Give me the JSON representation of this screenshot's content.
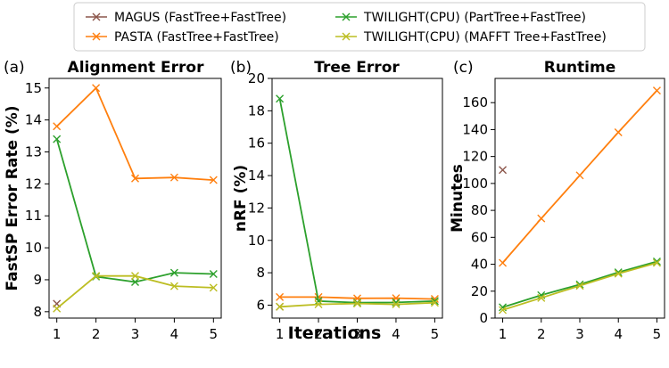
{
  "legend": {
    "entries": [
      {
        "label": "MAGUS (FastTree+FastTree)",
        "color": "#8c564b"
      },
      {
        "label": "PASTA (FastTree+FastTree)",
        "color": "#ff7f0e"
      },
      {
        "label": "TWILIGHT(CPU) (PartTree+FastTree)",
        "color": "#2ca02c"
      },
      {
        "label": "TWILIGHT(CPU) (MAFFT Tree+FastTree)",
        "color": "#bcbd22"
      }
    ]
  },
  "shared_xlabel": "Iterations",
  "chart_data": [
    {
      "type": "line",
      "panel_label": "(a)",
      "title": "Alignment Error",
      "xlabel": "",
      "ylabel": "FastSP Error Rate (%)",
      "x": [
        1,
        2,
        3,
        4,
        5
      ],
      "xticks": [
        "1",
        "2",
        "3",
        "4",
        "5"
      ],
      "ylim": [
        7.8,
        15.3
      ],
      "yticks": [
        8,
        9,
        10,
        11,
        12,
        13,
        14,
        15
      ],
      "series": [
        {
          "name": "MAGUS (FastTree+FastTree)",
          "color": "#8c564b",
          "values": [
            8.25,
            null,
            null,
            null,
            null
          ]
        },
        {
          "name": "PASTA (FastTree+FastTree)",
          "color": "#ff7f0e",
          "values": [
            13.8,
            15.0,
            12.17,
            12.2,
            12.12
          ]
        },
        {
          "name": "TWILIGHT(CPU) (PartTree+FastTree)",
          "color": "#2ca02c",
          "values": [
            13.4,
            9.1,
            8.93,
            9.22,
            9.18
          ]
        },
        {
          "name": "TWILIGHT(CPU) (MAFFT Tree+FastTree)",
          "color": "#bcbd22",
          "values": [
            8.1,
            9.12,
            9.12,
            8.8,
            8.75
          ]
        }
      ]
    },
    {
      "type": "line",
      "panel_label": "(b)",
      "title": "Tree Error",
      "xlabel": "",
      "ylabel": "nRF (%)",
      "x": [
        1,
        2,
        3,
        4,
        5
      ],
      "xticks": [
        "1",
        "2",
        "3",
        "4",
        "5"
      ],
      "ylim": [
        5.2,
        20.0
      ],
      "yticks": [
        6,
        8,
        10,
        12,
        14,
        16,
        18,
        20
      ],
      "series": [
        {
          "name": "MAGUS (FastTree+FastTree)",
          "color": "#8c564b",
          "values": [
            5.9,
            null,
            null,
            null,
            null
          ]
        },
        {
          "name": "PASTA (FastTree+FastTree)",
          "color": "#ff7f0e",
          "values": [
            6.5,
            6.5,
            6.42,
            6.43,
            6.38
          ]
        },
        {
          "name": "TWILIGHT(CPU) (PartTree+FastTree)",
          "color": "#2ca02c",
          "values": [
            18.75,
            6.25,
            6.15,
            6.17,
            6.25
          ]
        },
        {
          "name": "TWILIGHT(CPU) (MAFFT Tree+FastTree)",
          "color": "#bcbd22",
          "values": [
            5.9,
            6.05,
            6.1,
            6.05,
            6.15
          ]
        }
      ]
    },
    {
      "type": "line",
      "panel_label": "(c)",
      "title": "Runtime",
      "xlabel": "",
      "ylabel": "Minutes",
      "x": [
        1,
        2,
        3,
        4,
        5
      ],
      "xticks": [
        "1",
        "2",
        "3",
        "4",
        "5"
      ],
      "ylim": [
        0,
        178
      ],
      "yticks": [
        0,
        20,
        40,
        60,
        80,
        100,
        120,
        140,
        160
      ],
      "series": [
        {
          "name": "MAGUS (FastTree+FastTree)",
          "color": "#8c564b",
          "values": [
            110,
            null,
            null,
            null,
            null
          ]
        },
        {
          "name": "PASTA (FastTree+FastTree)",
          "color": "#ff7f0e",
          "values": [
            41,
            74,
            106,
            138,
            169
          ]
        },
        {
          "name": "TWILIGHT(CPU) (PartTree+FastTree)",
          "color": "#2ca02c",
          "values": [
            8,
            17,
            25,
            34,
            42
          ]
        },
        {
          "name": "TWILIGHT(CPU) (MAFFT Tree+FastTree)",
          "color": "#bcbd22",
          "values": [
            6,
            15,
            24,
            33,
            41
          ]
        }
      ]
    }
  ]
}
